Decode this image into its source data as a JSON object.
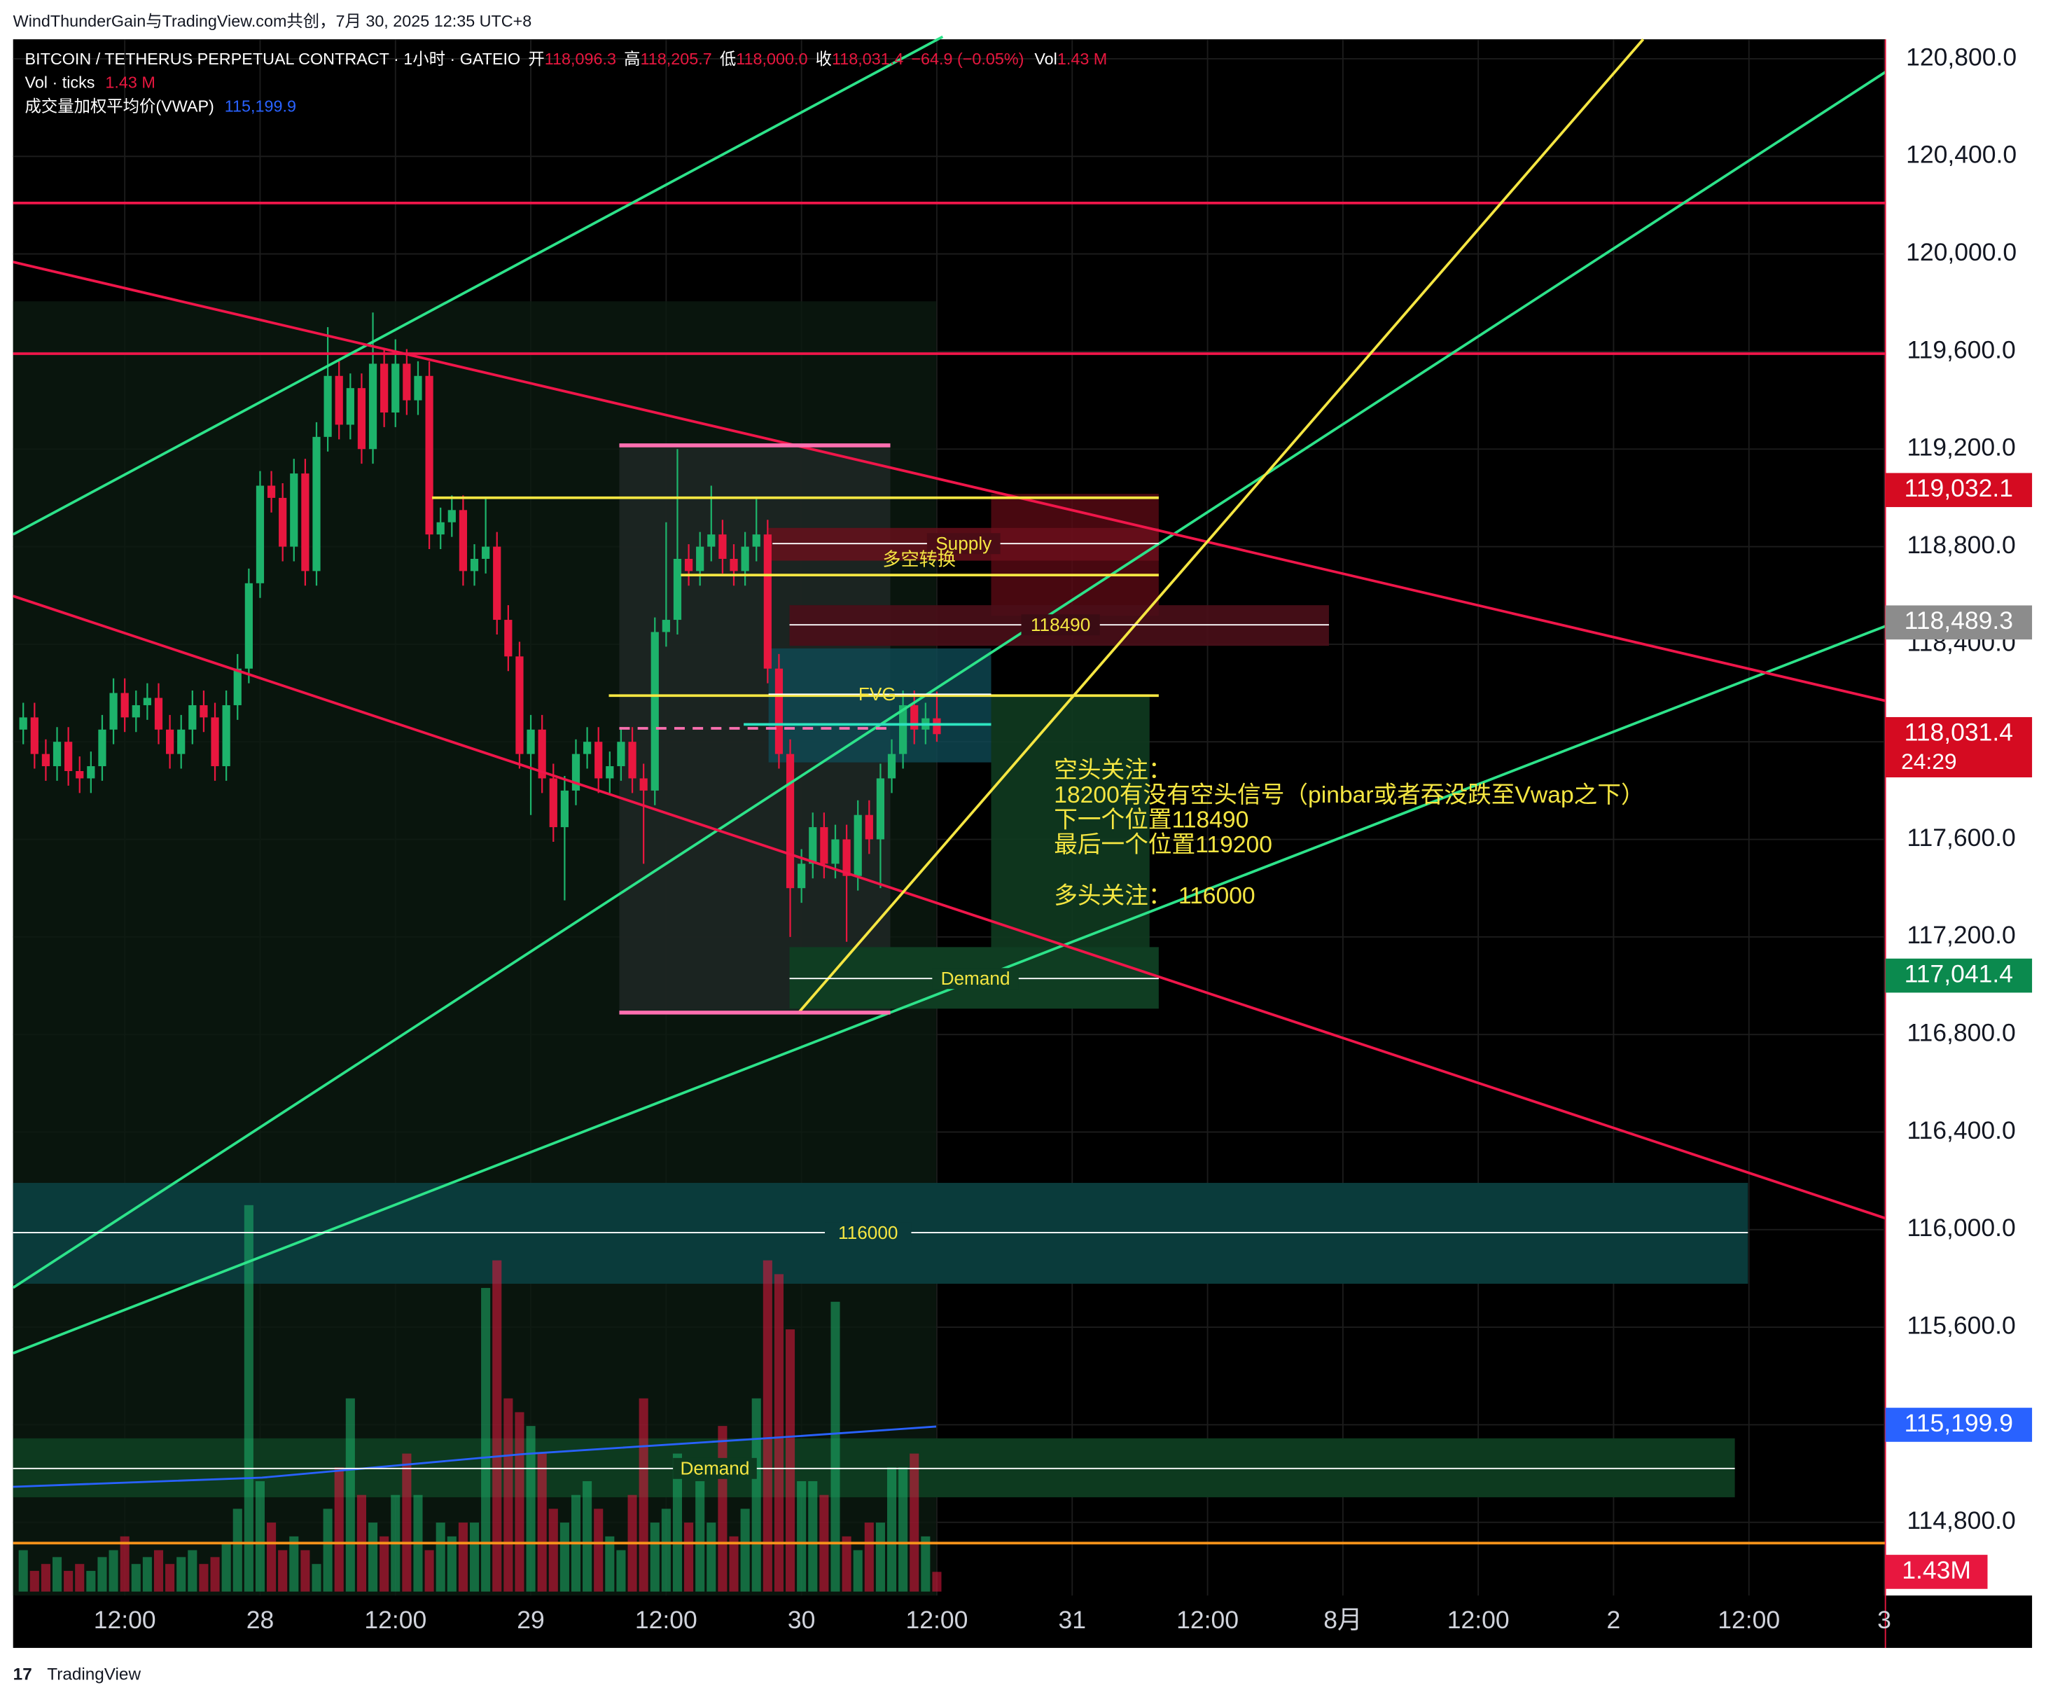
{
  "header": {
    "credit": "WindThunderGain与TradingView.com共创，7月 30, 2025 12:35 UTC+8",
    "footer": "TradingView"
  },
  "legend": {
    "symbol": "BITCOIN / TETHERUS PERPETUAL CONTRACT · 1小时 · GATEIO",
    "open_label": "开",
    "open": {
      "value": 118096.3,
      "label": "118,096.3"
    },
    "high_label": "高",
    "high": {
      "value": 118205.7,
      "label": "118,205.7"
    },
    "low_label": "低",
    "low": {
      "value": 118000.0,
      "label": "118,000.0"
    },
    "close_label": "收",
    "close": {
      "value": 118031.4,
      "label": "118,031.4"
    },
    "change": "−64.9 (−0.05%)",
    "vol_label": "Vol",
    "vol": "1.43 M",
    "vol_indicator": "Vol · ticks",
    "vol_indicator_value": "1.43 M",
    "vwap_label": "成交量加权平均价(VWAP)",
    "vwap": {
      "value": 115199.9,
      "label": "115,199.9"
    }
  },
  "chart_data": {
    "type": "candlestick",
    "ylim": [
      114500,
      120880
    ],
    "yticks": [
      {
        "value": 120800,
        "label": "120,800.0"
      },
      {
        "value": 120400,
        "label": "120,400.0"
      },
      {
        "value": 120000,
        "label": "120,000.0"
      },
      {
        "value": 119600,
        "label": "119,600.0"
      },
      {
        "value": 119200,
        "label": "119,200.0"
      },
      {
        "value": 118800,
        "label": "118,800.0"
      },
      {
        "value": 118400,
        "label": "118,400.0"
      },
      {
        "value": 118000,
        "label": "118,000.0"
      },
      {
        "value": 117600,
        "label": "117,600.0"
      },
      {
        "value": 117200,
        "label": "117,200.0"
      },
      {
        "value": 116800,
        "label": "116,800.0"
      },
      {
        "value": 116400,
        "label": "116,400.0"
      },
      {
        "value": 116000,
        "label": "116,000.0"
      },
      {
        "value": 115600,
        "label": "115,600.0"
      },
      {
        "value": 115200,
        "label": "115,200.0"
      },
      {
        "value": 114800,
        "label": "114,800.0"
      }
    ],
    "xlim": [
      2.1,
      168.1
    ],
    "xticks": [
      {
        "value": 12,
        "label": "12:00"
      },
      {
        "value": 24,
        "label": "28"
      },
      {
        "value": 36,
        "label": "12:00"
      },
      {
        "value": 48,
        "label": "29"
      },
      {
        "value": 60,
        "label": "12:00"
      },
      {
        "value": 72,
        "label": "30"
      },
      {
        "value": 84,
        "label": "12:00"
      },
      {
        "value": 96,
        "label": "31"
      },
      {
        "value": 108,
        "label": "12:00"
      },
      {
        "value": 120,
        "label": "8月"
      },
      {
        "value": 132,
        "label": "12:00"
      },
      {
        "value": 144,
        "label": "2"
      },
      {
        "value": 156,
        "label": "12:00"
      },
      {
        "value": 168,
        "label": "3"
      }
    ],
    "grid": true,
    "up_color": "#1db36b",
    "down_color": "#e8173f",
    "x": [
      3,
      4,
      5,
      6,
      7,
      8,
      9,
      10,
      11,
      12,
      13,
      14,
      15,
      16,
      17,
      18,
      19,
      20,
      21,
      22,
      23,
      24,
      25,
      26,
      27,
      28,
      29,
      30,
      31,
      32,
      33,
      34,
      35,
      36,
      37,
      38,
      39,
      40,
      41,
      42,
      43,
      44,
      45,
      46,
      47,
      48,
      49,
      50,
      51,
      52,
      53,
      54,
      55,
      56,
      57,
      58,
      59,
      60,
      61,
      62,
      63,
      64,
      65,
      66,
      67,
      68,
      69,
      70,
      71,
      72,
      73,
      74,
      75,
      76,
      77,
      78,
      79,
      80,
      81,
      82,
      83,
      84
    ],
    "open": [
      118050,
      118100,
      117950,
      117900,
      118000,
      117880,
      117850,
      117900,
      118050,
      118200,
      118100,
      118150,
      118180,
      118050,
      117950,
      118050,
      118150,
      118100,
      117900,
      118150,
      118300,
      118650,
      119050,
      119000,
      118800,
      119100,
      118700,
      119250,
      119500,
      119300,
      119450,
      119200,
      119550,
      119350,
      119550,
      119400,
      119500,
      118850,
      118900,
      118950,
      118700,
      118750,
      118800,
      118500,
      118350,
      117950,
      118050,
      117850,
      117650,
      117800,
      117950,
      118000,
      117850,
      117900,
      118000,
      117850,
      117800,
      118450,
      118500,
      118750,
      118700,
      118800,
      118850,
      118750,
      118700,
      118800,
      118850,
      118300,
      117950,
      117400,
      117500,
      117650,
      117500,
      117600,
      117450,
      117700,
      117600,
      117850,
      117950,
      118150,
      118050,
      118096.3
    ],
    "high": [
      118160,
      118160,
      118010,
      118060,
      118060,
      117940,
      117960,
      118110,
      118260,
      118260,
      118210,
      118240,
      118240,
      118110,
      118110,
      118210,
      118210,
      118160,
      118210,
      118360,
      118710,
      119110,
      119110,
      119060,
      119160,
      119160,
      119310,
      119700,
      119560,
      119510,
      119510,
      119760,
      119610,
      119650,
      119610,
      119560,
      119560,
      118960,
      119010,
      119010,
      118810,
      119000,
      118860,
      118560,
      118410,
      118110,
      118110,
      117910,
      117860,
      118010,
      118060,
      118060,
      117960,
      118060,
      118060,
      117910,
      118510,
      118900,
      119200,
      118810,
      118860,
      119050,
      118910,
      118810,
      118860,
      119000,
      118910,
      118360,
      118010,
      117560,
      117710,
      117710,
      117660,
      117660,
      117760,
      117760,
      117910,
      118010,
      118210,
      118210,
      118160,
      118205.7
    ],
    "low": [
      117990,
      117890,
      117840,
      117840,
      117820,
      117790,
      117790,
      117840,
      117990,
      118040,
      118040,
      118090,
      117990,
      117890,
      117890,
      117990,
      118040,
      117840,
      117840,
      118090,
      118240,
      118590,
      118940,
      118740,
      118740,
      118640,
      118640,
      119190,
      119240,
      119240,
      119140,
      119140,
      119290,
      119290,
      119340,
      119340,
      118790,
      118790,
      118840,
      118640,
      118640,
      118690,
      118440,
      118290,
      117890,
      117700,
      117790,
      117590,
      117350,
      117740,
      117890,
      117790,
      117790,
      117840,
      117790,
      117500,
      117740,
      118390,
      118440,
      118640,
      118640,
      118740,
      118690,
      118640,
      118640,
      118740,
      118240,
      117890,
      117200,
      117340,
      117440,
      117440,
      117440,
      117180,
      117390,
      117540,
      117400,
      117790,
      117890,
      117990,
      117990,
      118000
    ],
    "close": [
      118100,
      117950,
      117900,
      118000,
      117880,
      117850,
      117900,
      118050,
      118200,
      118100,
      118150,
      118180,
      118050,
      117950,
      118050,
      118150,
      118100,
      117900,
      118150,
      118300,
      118650,
      119050,
      119000,
      118800,
      119100,
      118700,
      119250,
      119500,
      119300,
      119450,
      119200,
      119550,
      119350,
      119550,
      119400,
      119500,
      118850,
      118900,
      118950,
      118700,
      118750,
      118800,
      118500,
      118350,
      117950,
      118050,
      117850,
      117650,
      117800,
      117950,
      118000,
      117850,
      117900,
      118000,
      117850,
      117800,
      118450,
      118500,
      118750,
      118700,
      118800,
      118850,
      118750,
      118700,
      118800,
      118850,
      118300,
      117950,
      117400,
      117500,
      117650,
      117500,
      117600,
      117450,
      117700,
      117600,
      117850,
      117950,
      118150,
      118050,
      118096.3,
      118031.4
    ],
    "volume": [
      3,
      1.5,
      2,
      2.5,
      1.5,
      2,
      1.5,
      2.5,
      3,
      4,
      2,
      2.5,
      3,
      2,
      2.5,
      3,
      2,
      2.5,
      3.5,
      6,
      28,
      8,
      5,
      3,
      4,
      3,
      2,
      6,
      9,
      14,
      7,
      5,
      4,
      7,
      10,
      7,
      3,
      5,
      4,
      5,
      5,
      22,
      24,
      14,
      13,
      12,
      10,
      6,
      5,
      7,
      8,
      6,
      4,
      3,
      7,
      14,
      5,
      6,
      10,
      5,
      8,
      5,
      12,
      4,
      6,
      14,
      24,
      23,
      19,
      8,
      8,
      7,
      21,
      4,
      3,
      5,
      5,
      9,
      9,
      10,
      4,
      1.43
    ],
    "volume_label": {
      "value": 1.43,
      "label": "1.43M",
      "color": "#e8173f"
    },
    "price_labels": [
      {
        "value": 119032.1,
        "label": "119,032.1",
        "color": "#d50b21"
      },
      {
        "value": 118489.3,
        "label": "118,489.3",
        "color": "#8c8c8c"
      },
      {
        "value": 118031.4,
        "label": "118,031.4",
        "color": "#d50b21",
        "timer": "24:29"
      },
      {
        "value": 117041.4,
        "label": "117,041.4",
        "color": "#0b8a4e"
      },
      {
        "value": 115199.9,
        "label": "115,199.9",
        "color": "#2962ff"
      }
    ]
  },
  "zones": {
    "supply": "Supply",
    "switch": "多空转换",
    "level_118490": "118490",
    "fvg": "FVG",
    "demand_upper": "Demand",
    "level_116000": "116000",
    "demand_lower": "Demand"
  },
  "annotation": [
    "空头关注：",
    "18200有没有空头信号（pinbar或者吞没跌至Vwap之下）",
    "下一个位置118490",
    "最后一个位置119200",
    "多头关注：  116000"
  ]
}
